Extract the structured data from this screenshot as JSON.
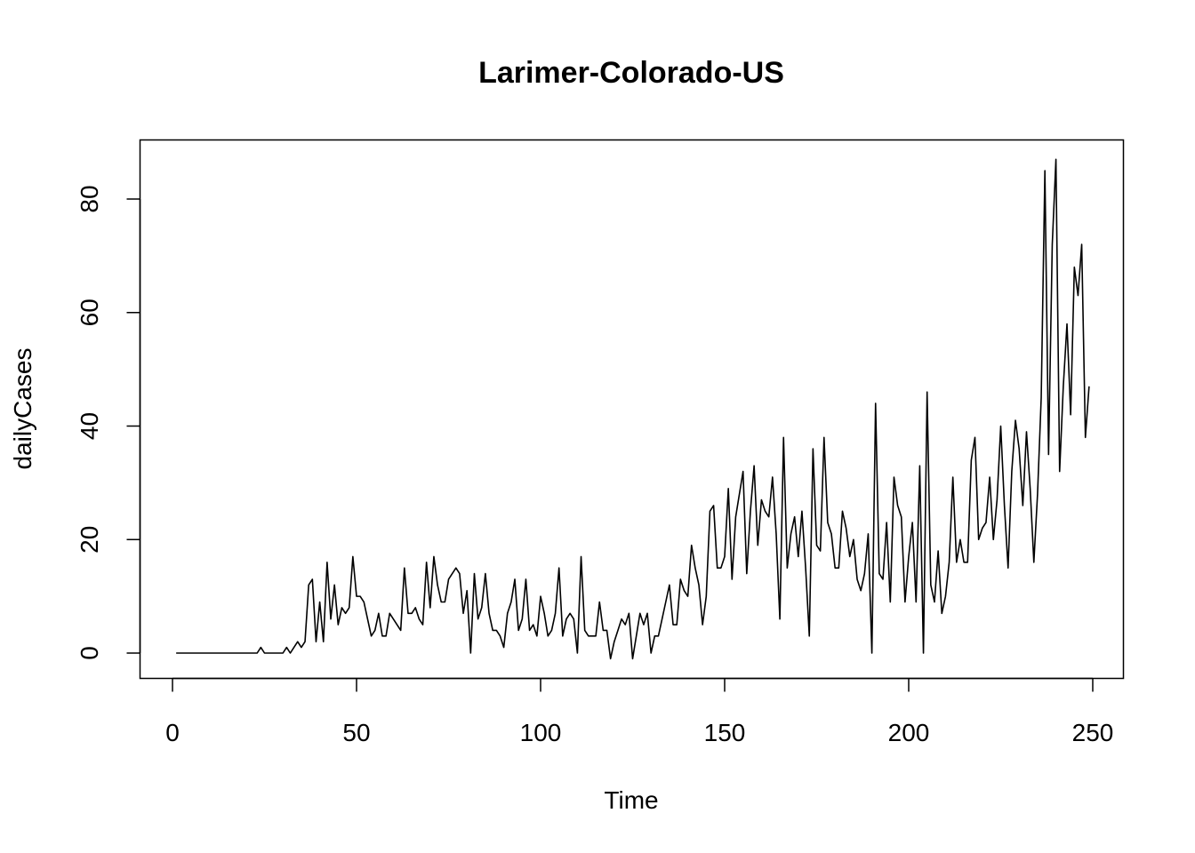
{
  "chart_data": {
    "type": "line",
    "title": "Larimer-Colorado-US",
    "xlabel": "Time",
    "ylabel": "dailyCases",
    "xlim": [
      1,
      248
    ],
    "ylim": [
      -1,
      87
    ],
    "x_ticks": [
      0,
      50,
      100,
      150,
      200,
      250
    ],
    "y_ticks": [
      0,
      20,
      40,
      60,
      80
    ],
    "x_tick_labels": [
      "0",
      "50",
      "100",
      "150",
      "200",
      "250"
    ],
    "y_tick_labels": [
      "0",
      "20",
      "40",
      "60",
      "80"
    ],
    "grid": false,
    "legend": "none",
    "line_color": "#000000",
    "series": [
      {
        "x_start": 1,
        "values": [
          0,
          0,
          0,
          0,
          0,
          0,
          0,
          0,
          0,
          0,
          0,
          0,
          0,
          0,
          0,
          0,
          0,
          0,
          0,
          0,
          0,
          0,
          0,
          1,
          0,
          0,
          0,
          0,
          0,
          0,
          1,
          0,
          1,
          2,
          1,
          2,
          12,
          13,
          2,
          9,
          2,
          16,
          6,
          12,
          5,
          8,
          7,
          8,
          17,
          10,
          10,
          9,
          6,
          3,
          4,
          7,
          3,
          3,
          7,
          6,
          5,
          4,
          15,
          7,
          7,
          8,
          6,
          5,
          16,
          8,
          17,
          12,
          9,
          9,
          13,
          14,
          15,
          14,
          7,
          11,
          0,
          14,
          6,
          8,
          14,
          7,
          4,
          4,
          3,
          1,
          7,
          9,
          13,
          4,
          6,
          13,
          4,
          5,
          3,
          10,
          7,
          3,
          4,
          7,
          15,
          3,
          6,
          7,
          6,
          0,
          17,
          4,
          3,
          3,
          3,
          9,
          4,
          4,
          -1,
          2,
          4,
          6,
          5,
          7,
          -1,
          3,
          7,
          5,
          7,
          0,
          3,
          3,
          6,
          9,
          12,
          5,
          5,
          13,
          11,
          10,
          19,
          15,
          12,
          5,
          10,
          25,
          26,
          15,
          15,
          17,
          29,
          13,
          24,
          28,
          32,
          14,
          25,
          33,
          19,
          27,
          25,
          24,
          31,
          21,
          6,
          38,
          15,
          21,
          24,
          17,
          25,
          15,
          3,
          36,
          19,
          18,
          38,
          23,
          21,
          15,
          15,
          25,
          22,
          17,
          20,
          13,
          11,
          14,
          21,
          0,
          44,
          14,
          13,
          23,
          9,
          31,
          26,
          24,
          9,
          17,
          23,
          9,
          33,
          0,
          46,
          12,
          9,
          18,
          7,
          10,
          16,
          31,
          16,
          20,
          16,
          16,
          34,
          38,
          20,
          22,
          23,
          31,
          20,
          27,
          40,
          26,
          15,
          32,
          41,
          36,
          26,
          39,
          29,
          16,
          28,
          45,
          85,
          35,
          72,
          87,
          32,
          47,
          58,
          42,
          68,
          63,
          72,
          38,
          47
        ]
      }
    ]
  }
}
